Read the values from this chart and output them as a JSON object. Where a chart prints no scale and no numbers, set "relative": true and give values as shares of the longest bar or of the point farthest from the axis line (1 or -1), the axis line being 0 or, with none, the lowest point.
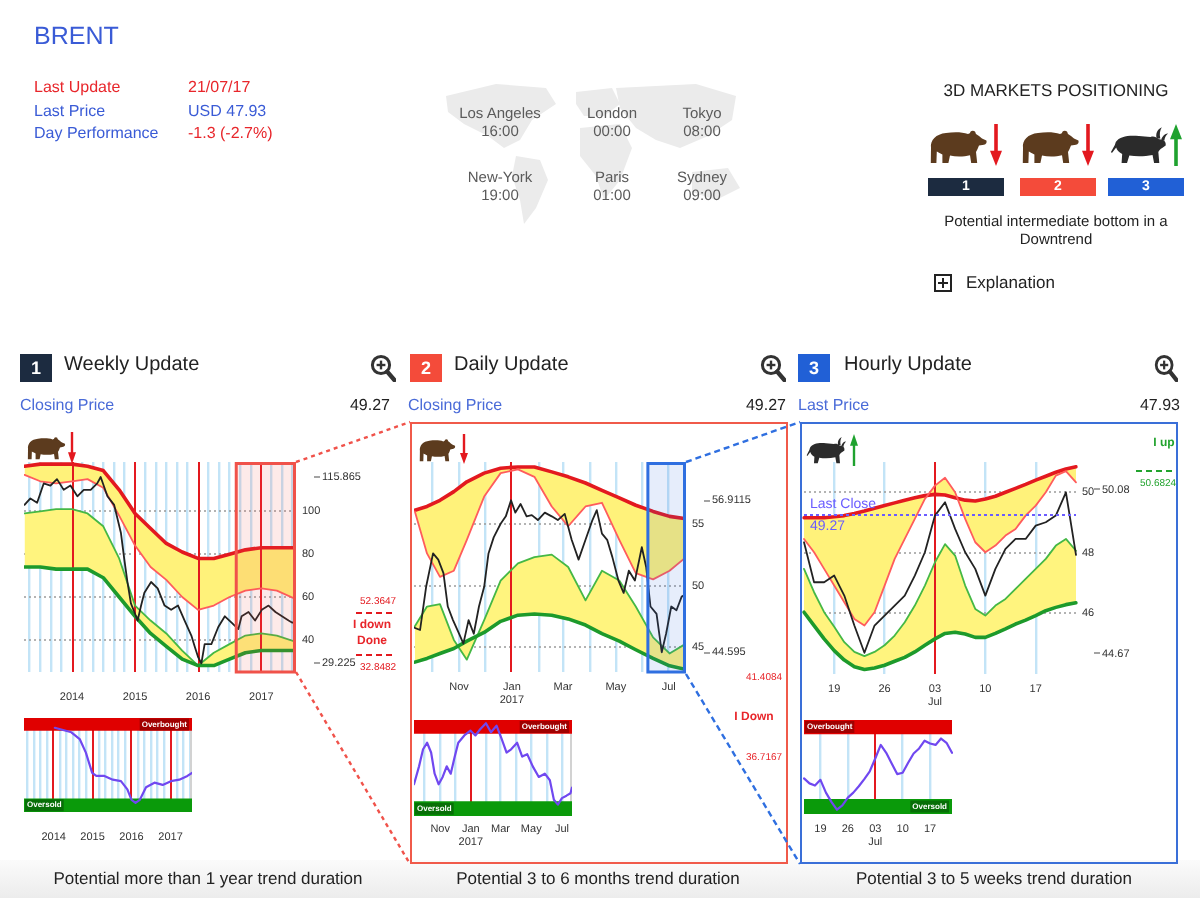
{
  "chart_data": [
    {
      "type": "other",
      "title": "BRENT",
      "annotations": [
        "Last Update",
        "21/07/17",
        "Last Price",
        "USD 47.93",
        "Day Performance",
        "-1.3 (-2.7%)",
        "Los Angeles",
        "16:00",
        "London",
        "00:00",
        "Tokyo",
        "08:00",
        "New-York",
        "19:00",
        "Paris",
        "01:00",
        "Sydney",
        "09:00",
        "3D MARKETS POSITIONING",
        "1",
        "2",
        "3",
        "Potential intermediate bottom in a Downtrend",
        "Explanation"
      ]
    },
    {
      "type": "line",
      "title": "Weekly Update",
      "subtitle": "Closing Price",
      "annotations": [
        "1",
        "49.27",
        "I down",
        "Done"
      ],
      "x": [
        "2013-04-01",
        "2013-07-01",
        "2013-10-01",
        "2014-01-01",
        "2014-04-01",
        "2014-07-01",
        "2014-10-01",
        "2015-01-01",
        "2015-04-01",
        "2015-07-01",
        "2015-10-01",
        "2016-01-01",
        "2016-04-01",
        "2016-07-01",
        "2016-10-01",
        "2017-01-01",
        "2017-04-01",
        "2017-07-21"
      ],
      "series": [
        {
          "color": "#e3191f",
          "values": [
            121,
            122,
            122,
            122,
            121,
            119,
            110,
            99,
            92,
            85,
            81,
            78,
            78,
            80,
            82,
            83,
            83,
            83
          ]
        },
        {
          "color": "#ff5c5c",
          "values": [
            117,
            114,
            113,
            114,
            115,
            111,
            98,
            84,
            74,
            68,
            60,
            54,
            56,
            60,
            63,
            64,
            63,
            59
          ],
          "lower": [
            117,
            114,
            113,
            114,
            115,
            111,
            98,
            84,
            74,
            68,
            60,
            54,
            56,
            60,
            63,
            64,
            63,
            59
          ],
          "upper": [
            121,
            122,
            122,
            122,
            121,
            119,
            110,
            99,
            92,
            85,
            81,
            78,
            78,
            80,
            82,
            83,
            83,
            83
          ]
        },
        {
          "color": "#45b845",
          "values": [
            99,
            100,
            101,
            101,
            99,
            93,
            78,
            56,
            49,
            43,
            35,
            28,
            34,
            38,
            42,
            43,
            42,
            39
          ]
        },
        {
          "color": "#1d9a2b",
          "values": [
            74,
            74,
            73,
            73,
            73,
            69,
            60,
            51,
            43,
            37,
            31,
            28,
            28,
            31,
            34,
            35,
            35,
            35
          ],
          "lower": [
            74,
            74,
            73,
            73,
            73,
            69,
            60,
            51,
            43,
            37,
            31,
            28,
            28,
            31,
            34,
            35,
            35,
            35
          ],
          "upper": [
            99,
            100,
            101,
            101,
            99,
            93,
            78,
            56,
            49,
            43,
            35,
            28,
            34,
            38,
            42,
            43,
            42,
            39
          ]
        },
        {
          "color": "#222222",
          "x": [
            "2013-04-01",
            "2013-05-05",
            "2013-06-13",
            "2013-07-21",
            "2013-08-29",
            "2013-10-06",
            "2013-11-14",
            "2013-12-23",
            "2014-02-01",
            "2014-03-10",
            "2014-04-19",
            "2014-05-27",
            "2014-06-16",
            "2014-07-25",
            "2014-09-02",
            "2014-10-11",
            "2014-10-30",
            "2014-11-18",
            "2014-12-08",
            "2014-12-28",
            "2015-01-16",
            "2015-02-05",
            "2015-02-24",
            "2015-04-04",
            "2015-05-12",
            "2015-06-21",
            "2015-07-29",
            "2015-09-07",
            "2015-10-15",
            "2015-11-23",
            "2015-12-12",
            "2016-01-01",
            "2016-01-20",
            "2016-02-08",
            "2016-03-18",
            "2016-04-27",
            "2016-06-04",
            "2016-07-13",
            "2016-08-21",
            "2016-09-09",
            "2016-10-19",
            "2016-11-26",
            "2017-01-04",
            "2017-02-12",
            "2017-03-24",
            "2017-05-01",
            "2017-06-08",
            "2017-06-30",
            "2017-07-21"
          ],
          "values": [
            103,
            106,
            104,
            113,
            112,
            115,
            110,
            112,
            107,
            110,
            110,
            113,
            116,
            107,
            103,
            90,
            78,
            67,
            57,
            53,
            49,
            56,
            62,
            67,
            64,
            56,
            54,
            56,
            49,
            42,
            37,
            32,
            29,
            38,
            38,
            46,
            51,
            48,
            45,
            51,
            53,
            49,
            54,
            56,
            53,
            51,
            49,
            48,
            49
          ]
        }
      ],
      "xlim": [
        "2013-03-29",
        "2017-07-21"
      ],
      "xticks": [
        {
          "value": "2013-05-01",
          "label": null
        },
        {
          "value": "2013-07-01",
          "label": null
        },
        {
          "value": "2013-09-01",
          "label": null
        },
        {
          "value": "2013-11-01",
          "label": null
        },
        {
          "value": "2014-01-01",
          "label": "2014"
        },
        {
          "value": "2014-03-01",
          "label": null
        },
        {
          "value": "2014-05-01",
          "label": null
        },
        {
          "value": "2014-07-01",
          "label": null
        },
        {
          "value": "2014-09-01",
          "label": null
        },
        {
          "value": "2014-11-01",
          "label": null
        },
        {
          "value": "2015-01-01",
          "label": "2015"
        },
        {
          "value": "2015-03-01",
          "label": null
        },
        {
          "value": "2015-05-01",
          "label": null
        },
        {
          "value": "2015-07-01",
          "label": null
        },
        {
          "value": "2015-09-01",
          "label": null
        },
        {
          "value": "2015-11-01",
          "label": null
        },
        {
          "value": "2016-01-01",
          "label": "2016"
        },
        {
          "value": "2016-03-01",
          "label": null
        },
        {
          "value": "2016-05-01",
          "label": null
        },
        {
          "value": "2016-07-01",
          "label": null
        },
        {
          "value": "2016-09-01",
          "label": null
        },
        {
          "value": "2016-11-01",
          "label": null
        },
        {
          "value": "2017-01-01",
          "label": "2017"
        },
        {
          "value": "2017-03-01",
          "label": null
        },
        {
          "value": "2017-05-01",
          "label": null
        },
        {
          "value": "2017-07-01",
          "label": null
        }
      ],
      "ylim": [
        25,
        123
      ],
      "yticks": [
        40,
        60,
        80,
        100
      ],
      "grid": true,
      "ref_lines": [
        {
          "axis": "x",
          "value": "2014-01-01",
          "color": "#e3191f"
        },
        {
          "axis": "x",
          "value": "2015-01-01",
          "color": "#e41a21"
        },
        {
          "axis": "x",
          "value": "2016-01-01",
          "color": "#e2181d"
        },
        {
          "axis": "x",
          "value": "2017-01-01",
          "color": "#e51b23"
        },
        {
          "axis": "y",
          "value": 115.865,
          "label": "115.865",
          "color": "#8c8c8c"
        },
        {
          "axis": "y",
          "value": 29.225,
          "label": "29.225",
          "color": "#8c8c8c"
        },
        {
          "axis": "y",
          "value": 52.3647,
          "label": "52.3647",
          "color": "#e3191f",
          "line_style": "dashed"
        },
        {
          "axis": "y",
          "value": 32.8482,
          "label": "32.8482",
          "color": "#e3191f",
          "line_style": "dashed"
        }
      ],
      "bands": [
        {
          "axis": "x",
          "from": "2016-08-09",
          "to": "2017-07-21",
          "color": "#f0524a"
        }
      ]
    },
    {
      "type": "line",
      "relative": true,
      "annotations": [
        "Potential more than 1 year trend duration"
      ],
      "series": [
        {
          "color": "#7048f0",
          "x": [
            "2014-01-12",
            "2014-06-16",
            "2014-09-02",
            "2014-10-30",
            "2014-12-28",
            "2015-02-05",
            "2015-04-22",
            "2015-07-09",
            "2015-09-24",
            "2015-11-23",
            "2016-01-01",
            "2016-02-08",
            "2016-03-18",
            "2016-05-16",
            "2016-08-03",
            "2016-10-19",
            "2017-01-04",
            "2017-03-24",
            "2017-06-08",
            "2017-07-21"
          ],
          "values": [
            1.0,
            0.94,
            0.85,
            0.67,
            0.4,
            0.36,
            0.36,
            0.31,
            0.29,
            0.18,
            0.04,
            0.0,
            0.04,
            0.21,
            0.27,
            0.24,
            0.29,
            0.31,
            0.36,
            0.4
          ]
        }
      ],
      "xlim": [
        "2013-03-29",
        "2017-07-21"
      ],
      "xticks": [
        {
          "value": "2013-05-01",
          "label": null
        },
        {
          "value": "2013-07-01",
          "label": null
        },
        {
          "value": "2013-09-01",
          "label": null
        },
        {
          "value": "2013-11-01",
          "label": null
        },
        {
          "value": "2014-01-01",
          "label": "2014"
        },
        {
          "value": "2014-03-01",
          "label": null
        },
        {
          "value": "2014-05-01",
          "label": null
        },
        {
          "value": "2014-07-01",
          "label": null
        },
        {
          "value": "2014-09-01",
          "label": null
        },
        {
          "value": "2014-11-01",
          "label": null
        },
        {
          "value": "2015-01-01",
          "label": "2015"
        },
        {
          "value": "2015-03-01",
          "label": null
        },
        {
          "value": "2015-05-01",
          "label": null
        },
        {
          "value": "2015-07-01",
          "label": null
        },
        {
          "value": "2015-09-01",
          "label": null
        },
        {
          "value": "2015-11-01",
          "label": null
        },
        {
          "value": "2016-01-01",
          "label": "2016"
        },
        {
          "value": "2016-03-01",
          "label": null
        },
        {
          "value": "2016-05-01",
          "label": null
        },
        {
          "value": "2016-07-01",
          "label": null
        },
        {
          "value": "2016-09-01",
          "label": null
        },
        {
          "value": "2016-11-01",
          "label": null
        },
        {
          "value": "2017-01-01",
          "label": "2017"
        },
        {
          "value": "2017-03-01",
          "label": null
        },
        {
          "value": "2017-05-01",
          "label": null
        },
        {
          "value": "2017-07-01",
          "label": null
        }
      ],
      "grid": "x",
      "ref_lines": [
        {
          "axis": "x",
          "value": "2014-01-01",
          "color": "#e3191f"
        },
        {
          "axis": "x",
          "value": "2015-01-01",
          "color": "#e41a21"
        },
        {
          "axis": "x",
          "value": "2016-01-01",
          "color": "#e2181d"
        },
        {
          "axis": "x",
          "value": "2017-01-01",
          "color": "#e51b23"
        }
      ],
      "bands": [
        {
          "axis": "y",
          "from": 0.96,
          "to": 1.13,
          "label": "Overbought",
          "color": "#e00000"
        },
        {
          "axis": "y",
          "from": -0.12,
          "to": 0.06,
          "label": "Oversold",
          "color": "#0a9a0a"
        }
      ]
    },
    {
      "type": "line",
      "title": "Daily Update",
      "subtitle": "Closing Price",
      "annotations": [
        "2",
        "49.27",
        "41.4084",
        "I Down",
        "36.7167"
      ],
      "x": [
        "2016-09-11",
        "2016-09-25",
        "2016-10-10",
        "2016-10-26",
        "2016-11-10",
        "2016-11-30",
        "2016-12-19",
        "2017-01-08",
        "2017-01-27",
        "2017-02-16",
        "2017-03-07",
        "2017-03-27",
        "2017-04-15",
        "2017-05-05",
        "2017-05-24",
        "2017-06-13",
        "2017-07-02",
        "2017-07-21"
      ],
      "series": [
        {
          "color": "#e3191f",
          "values": [
            56.1,
            56.4,
            56.9,
            57.6,
            58.4,
            59.1,
            59.5,
            59.6,
            59.6,
            59.2,
            58.8,
            58.3,
            57.7,
            57.1,
            56.5,
            56.0,
            55.6,
            55.4
          ]
        },
        {
          "color": "#ff5c5c",
          "values": [
            56.0,
            52.6,
            50.7,
            51.2,
            53.7,
            57.2,
            59.1,
            59.4,
            58.8,
            56.4,
            54.8,
            56.4,
            56.7,
            53.7,
            51.0,
            50.5,
            51.2,
            52.3
          ],
          "lower": [
            56.0,
            52.6,
            50.7,
            51.2,
            53.7,
            57.2,
            59.1,
            59.4,
            58.8,
            56.4,
            54.8,
            56.4,
            56.7,
            53.7,
            51.0,
            50.5,
            51.2,
            52.3
          ],
          "upper": [
            56.1,
            56.4,
            56.9,
            57.6,
            58.4,
            59.1,
            59.5,
            59.6,
            59.6,
            59.2,
            58.8,
            58.3,
            57.7,
            57.1,
            56.5,
            56.0,
            55.6,
            55.4
          ]
        },
        {
          "color": "#45b845",
          "values": [
            46.7,
            48.3,
            48.5,
            45.6,
            44.0,
            47.2,
            50.4,
            51.8,
            52.3,
            52.5,
            51.5,
            48.8,
            51.2,
            50.4,
            48.3,
            45.8,
            44.5,
            45.3
          ]
        },
        {
          "color": "#1d9a2b",
          "values": [
            43.8,
            44.1,
            44.5,
            44.9,
            45.5,
            46.2,
            47.1,
            47.6,
            47.7,
            47.6,
            47.3,
            46.8,
            46.1,
            45.5,
            44.8,
            44.1,
            43.5,
            43.2
          ],
          "lower": [
            43.8,
            44.1,
            44.5,
            44.9,
            45.5,
            46.2,
            47.1,
            47.6,
            47.7,
            47.6,
            47.3,
            46.8,
            46.1,
            45.5,
            44.8,
            44.1,
            43.5,
            43.2
          ],
          "upper": [
            46.7,
            48.3,
            48.5,
            45.6,
            44.0,
            47.2,
            50.4,
            51.8,
            52.3,
            52.5,
            51.5,
            48.8,
            51.2,
            50.4,
            48.3,
            45.8,
            44.5,
            45.3
          ]
        },
        {
          "color": "#222222",
          "x": [
            "2016-09-10",
            "2016-09-17",
            "2016-09-24",
            "2016-10-02",
            "2016-10-08",
            "2016-10-14",
            "2016-10-19",
            "2016-10-25",
            "2016-11-01",
            "2016-11-06",
            "2016-11-12",
            "2016-11-18",
            "2016-11-24",
            "2016-11-30",
            "2016-12-05",
            "2016-12-11",
            "2016-12-19",
            "2016-12-25",
            "2016-12-31",
            "2017-01-05",
            "2017-01-11",
            "2017-01-18",
            "2017-01-24",
            "2017-01-31",
            "2017-02-08",
            "2017-02-16",
            "2017-02-23",
            "2017-03-03",
            "2017-03-11",
            "2017-03-19",
            "2017-03-27",
            "2017-04-04",
            "2017-04-09",
            "2017-04-15",
            "2017-04-21",
            "2017-04-27",
            "2017-05-04",
            "2017-05-10",
            "2017-05-16",
            "2017-05-23",
            "2017-05-31",
            "2017-06-05",
            "2017-06-10",
            "2017-06-17",
            "2017-06-23",
            "2017-06-28",
            "2017-07-04",
            "2017-07-10",
            "2017-07-16",
            "2017-07-21"
          ],
          "values": [
            46.6,
            46.4,
            49.9,
            52.6,
            52.1,
            51.0,
            48.3,
            47.2,
            46.1,
            45.3,
            47.2,
            46.1,
            48.3,
            49.9,
            52.6,
            53.9,
            55.0,
            55.6,
            56.9,
            55.9,
            56.6,
            55.6,
            55.7,
            55.3,
            55.9,
            55.6,
            55.3,
            55.8,
            53.7,
            52.1,
            53.7,
            55.3,
            56.1,
            54.2,
            53.7,
            52.3,
            50.4,
            49.4,
            51.2,
            50.4,
            53.1,
            51.5,
            48.3,
            47.7,
            44.6,
            46.1,
            48.3,
            48.0,
            49.1,
            49.3
          ]
        }
      ],
      "xlim": [
        "2016-09-10",
        "2017-07-21"
      ],
      "xticks": [
        {
          "value": "2016-10-01",
          "label": null
        },
        {
          "value": "2016-11-01",
          "label": "Nov"
        },
        {
          "value": "2016-12-01",
          "label": null
        },
        {
          "value": "2017-01-01",
          "label": "Jan\n2017"
        },
        {
          "value": "2017-02-01",
          "label": null
        },
        {
          "value": "2017-03-01",
          "label": "Mar"
        },
        {
          "value": "2017-04-01",
          "label": null
        },
        {
          "value": "2017-05-01",
          "label": "May"
        },
        {
          "value": "2017-06-01",
          "label": null
        },
        {
          "value": "2017-07-01",
          "label": "Jul"
        }
      ],
      "ylim": [
        43,
        60
      ],
      "yticks": [
        45,
        50,
        55
      ],
      "grid": true,
      "ref_lines": [
        {
          "axis": "x",
          "value": "2017-01-01",
          "color": "#e3191f"
        },
        {
          "axis": "y",
          "value": 56.9115,
          "label": "56.9115",
          "color": "#8c8c8c"
        },
        {
          "axis": "y",
          "value": 44.595,
          "label": "44.595",
          "color": "#8c8c8c"
        }
      ],
      "bands": [
        {
          "axis": "x",
          "from": "2017-06-07",
          "to": "2017-07-21",
          "color": "#2f6fe0"
        }
      ]
    },
    {
      "type": "line",
      "relative": true,
      "annotations": [
        "Potential 3 to 6 months trend duration"
      ],
      "series": [
        {
          "color": "#7048f0",
          "x": [
            "2016-09-10",
            "2016-09-20",
            "2016-09-28",
            "2016-10-06",
            "2016-10-14",
            "2016-10-21",
            "2016-10-29",
            "2016-11-06",
            "2016-11-14",
            "2016-11-22",
            "2016-11-30",
            "2016-12-07",
            "2016-12-19",
            "2016-12-31",
            "2017-01-10",
            "2017-01-20",
            "2017-01-31",
            "2017-02-10",
            "2017-02-21",
            "2017-03-03",
            "2017-03-13",
            "2017-03-22",
            "2017-04-03",
            "2017-04-13",
            "2017-04-23",
            "2017-05-04",
            "2017-05-16",
            "2017-05-28",
            "2017-06-07",
            "2017-06-15",
            "2017-06-23",
            "2017-07-01",
            "2017-07-10",
            "2017-07-18",
            "2017-07-21"
          ],
          "values": [
            0.25,
            0.47,
            0.68,
            0.76,
            0.64,
            0.38,
            0.25,
            0.34,
            0.47,
            0.38,
            0.59,
            0.76,
            0.85,
            0.91,
            0.85,
            0.93,
            1.0,
            0.89,
            0.97,
            0.81,
            0.64,
            0.68,
            0.76,
            0.59,
            0.62,
            0.47,
            0.34,
            0.38,
            0.3,
            0.06,
            0.0,
            0.08,
            0.11,
            0.14,
            0.21
          ]
        }
      ],
      "xlim": [
        "2016-09-10",
        "2017-07-21"
      ],
      "xticks": [
        {
          "value": "2016-10-01",
          "label": null
        },
        {
          "value": "2016-11-01",
          "label": "Nov"
        },
        {
          "value": "2016-12-01",
          "label": null
        },
        {
          "value": "2017-01-01",
          "label": "Jan\n2017"
        },
        {
          "value": "2017-02-01",
          "label": null
        },
        {
          "value": "2017-03-01",
          "label": "Mar"
        },
        {
          "value": "2017-04-01",
          "label": null
        },
        {
          "value": "2017-05-01",
          "label": "May"
        },
        {
          "value": "2017-06-01",
          "label": null
        },
        {
          "value": "2017-07-01",
          "label": "Jul"
        }
      ],
      "grid": "x",
      "ref_lines": [
        {
          "axis": "x",
          "value": "2017-01-01",
          "color": "#e3191f"
        }
      ],
      "bands": [
        {
          "axis": "y",
          "from": 0.87,
          "to": 1.04,
          "label": "Overbought",
          "color": "#e00000"
        },
        {
          "axis": "y",
          "from": -0.14,
          "to": 0.04,
          "label": "Oversold",
          "color": "#0a9a0a"
        }
      ]
    },
    {
      "type": "line",
      "title": "Hourly Update",
      "subtitle": "Last Price",
      "annotations": [
        "3",
        "47.93",
        "I up",
        {
          "text": "49.27",
          "y": 49.27
        }
      ],
      "categories": [
        null,
        null,
        null,
        "19",
        null,
        null,
        null,
        null,
        "26",
        null,
        null,
        null,
        null,
        "03\nJul",
        null,
        null,
        null,
        null,
        "10",
        null,
        null,
        null,
        null,
        "17",
        null,
        null,
        null,
        null
      ],
      "series": [
        {
          "color": "#e3191f",
          "values": [
            49.16,
            49.16,
            49.16,
            49.19,
            49.23,
            49.3,
            49.38,
            49.47,
            49.56,
            49.65,
            49.74,
            49.82,
            49.89,
            49.93,
            49.91,
            49.82,
            49.74,
            49.71,
            49.78,
            49.87,
            50.0,
            50.13,
            50.26,
            50.4,
            50.53,
            50.66,
            50.77,
            50.84
          ]
        },
        {
          "color": "#ff5c5c",
          "values": [
            48.46,
            48.02,
            47.47,
            46.92,
            46.37,
            45.82,
            45.6,
            46.04,
            46.92,
            47.8,
            48.46,
            49.12,
            49.78,
            50.22,
            50.48,
            50.0,
            49.12,
            48.35,
            48.02,
            48.24,
            48.57,
            48.79,
            49.23,
            49.56,
            50.0,
            50.55,
            50.7,
            50.33
          ],
          "lower": [
            48.46,
            48.02,
            47.47,
            46.92,
            46.37,
            45.82,
            45.6,
            46.04,
            46.92,
            47.8,
            48.46,
            49.12,
            49.78,
            50.22,
            50.48,
            50.0,
            49.12,
            48.35,
            48.02,
            48.24,
            48.57,
            48.79,
            49.23,
            49.56,
            50.0,
            50.55,
            50.7,
            50.33
          ],
          "upper": [
            49.16,
            49.16,
            49.16,
            49.19,
            49.23,
            49.3,
            49.38,
            49.47,
            49.56,
            49.65,
            49.74,
            49.82,
            49.89,
            49.93,
            49.91,
            49.82,
            49.74,
            49.71,
            49.78,
            49.87,
            50.0,
            50.13,
            50.26,
            50.4,
            50.53,
            50.66,
            50.77,
            50.84
          ]
        },
        {
          "color": "#45b845",
          "values": [
            47.47,
            46.7,
            46.04,
            45.56,
            45.05,
            44.73,
            44.59,
            44.73,
            44.95,
            45.27,
            45.71,
            46.26,
            46.92,
            47.69,
            48.29,
            47.91,
            46.92,
            46.15,
            45.93,
            46.26,
            46.48,
            46.81,
            47.14,
            47.47,
            47.8,
            48.24,
            48.46,
            48.07
          ]
        },
        {
          "color": "#1d9a2b",
          "values": [
            46.04,
            45.6,
            45.16,
            44.77,
            44.46,
            44.24,
            44.15,
            44.2,
            44.29,
            44.42,
            44.55,
            44.73,
            44.95,
            45.16,
            45.34,
            45.38,
            45.32,
            45.21,
            45.21,
            45.34,
            45.49,
            45.65,
            45.78,
            45.93,
            46.09,
            46.2,
            46.29,
            46.35
          ],
          "lower": [
            46.04,
            45.6,
            45.16,
            44.77,
            44.46,
            44.24,
            44.15,
            44.2,
            44.29,
            44.42,
            44.55,
            44.73,
            44.95,
            45.16,
            45.34,
            45.38,
            45.32,
            45.21,
            45.21,
            45.34,
            45.49,
            45.65,
            45.78,
            45.93,
            46.09,
            46.2,
            46.29,
            46.35
          ],
          "upper": [
            47.47,
            46.7,
            46.04,
            45.56,
            45.05,
            44.73,
            44.59,
            44.73,
            44.95,
            45.27,
            45.71,
            46.26,
            46.92,
            47.69,
            48.29,
            47.91,
            46.92,
            46.15,
            45.93,
            46.26,
            46.48,
            46.81,
            47.14,
            47.47,
            47.8,
            48.24,
            48.46,
            48.07
          ]
        },
        {
          "color": "#222222",
          "values": [
            48.35,
            47.03,
            47.03,
            47.25,
            46.59,
            45.6,
            44.7,
            45.6,
            45.93,
            46.26,
            46.59,
            47.25,
            48.02,
            49.23,
            49.67,
            48.79,
            48.02,
            47.47,
            46.59,
            47.47,
            48.13,
            48.46,
            48.46,
            48.9,
            49.01,
            49.23,
            50.0,
            47.93
          ]
        }
      ],
      "ylim": [
        44,
        51
      ],
      "yticks": [
        46,
        48,
        50
      ],
      "grid": true,
      "ref_lines": [
        {
          "axis": "x",
          "value": "03\nJul",
          "color": "#e3191f"
        },
        {
          "axis": "y",
          "value": 50.08,
          "label": "50.08",
          "color": "#8c8c8c"
        },
        {
          "axis": "y",
          "value": 44.67,
          "label": "44.67",
          "color": "#8c8c8c"
        },
        {
          "axis": "y",
          "value": 50.6824,
          "label": "50.6824",
          "color": "#22a32e",
          "line_style": "dashed"
        },
        {
          "axis": "y",
          "value": 49.27,
          "label": "Last Close",
          "color": "#6a5cff",
          "line_style": "dotted"
        }
      ]
    },
    {
      "type": "line",
      "relative": true,
      "annotations": [
        "Potential 3 to 5 weeks trend duration"
      ],
      "categories": [
        null,
        null,
        null,
        "19",
        null,
        null,
        null,
        null,
        "26",
        null,
        null,
        null,
        null,
        "03\nJul",
        null,
        null,
        null,
        null,
        "10",
        null,
        null,
        null,
        null,
        "17",
        null,
        null,
        null,
        null
      ],
      "series": [
        {
          "color": "#7048f0",
          "values": [
            0.44,
            0.37,
            0.34,
            0.42,
            0.24,
            0.11,
            0.0,
            0.06,
            0.17,
            0.24,
            0.33,
            0.43,
            0.54,
            0.72,
            0.91,
            0.8,
            0.65,
            0.5,
            0.52,
            0.66,
            0.79,
            0.86,
            0.97,
            0.93,
            0.91,
            1.0,
            0.94,
            0.8
          ]
        }
      ],
      "grid": "x",
      "ref_lines": [
        {
          "axis": "x",
          "value": "03\nJul",
          "color": "#e3191f"
        }
      ],
      "bands": [
        {
          "axis": "y",
          "from": 1.06,
          "to": 1.26,
          "label": "Overbought",
          "color": "#e00000"
        },
        {
          "axis": "y",
          "from": -0.06,
          "to": 0.15,
          "label": "Oversold",
          "color": "#0a9a0a"
        }
      ]
    }
  ]
}
